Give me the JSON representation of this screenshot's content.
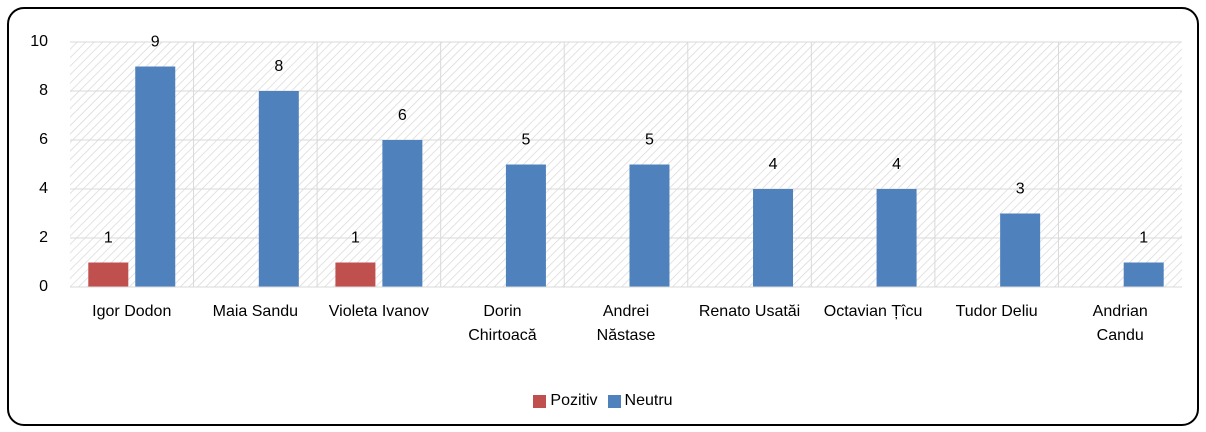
{
  "chart_data": {
    "type": "bar",
    "categories": [
      "Igor Dodon",
      "Maia Sandu",
      "Violeta Ivanov",
      "Dorin Chirtoacă",
      "Andrei Năstase",
      "Renato Usatăi",
      "Octavian Țîcu",
      "Tudor Deliu",
      "Andrian Candu"
    ],
    "series": [
      {
        "name": "Pozitiv",
        "color": "#c0504d",
        "values": [
          1,
          null,
          1,
          null,
          null,
          null,
          null,
          null,
          null
        ]
      },
      {
        "name": "Neutru",
        "color": "#4f81bd",
        "values": [
          9,
          8,
          6,
          5,
          5,
          4,
          4,
          3,
          1
        ]
      }
    ],
    "ylim": [
      0,
      10
    ],
    "yticks": [
      0,
      2,
      4,
      6,
      8,
      10
    ],
    "grid": true,
    "legend": "bottom"
  }
}
